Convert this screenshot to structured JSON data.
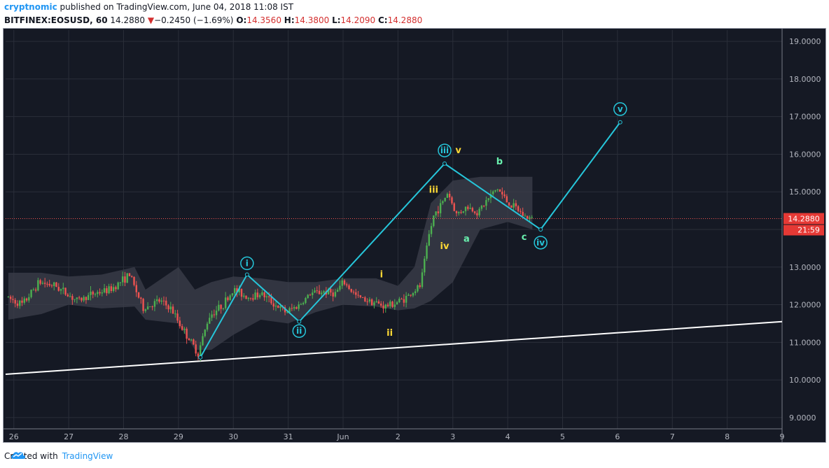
{
  "header": {
    "author": "cryptnomic",
    "published_text": "published on TradingView.com, June 04, 2018 11:08 IST",
    "symbol": "BITFINEX:EOSUSD, 60",
    "last_price": "14.2880",
    "change_arrow": "▼",
    "change": "−0.2450 (−1.69%)",
    "open_label": "O:",
    "open": "14.3560",
    "high_label": "H:",
    "high": "14.3800",
    "low_label": "L:",
    "low": "14.2090",
    "close_label": "C:",
    "close": "14.2880"
  },
  "price_badge": {
    "price": "14.2880",
    "countdown": "21:59"
  },
  "footer": {
    "created_with": "Created with",
    "brand": "TradingView"
  },
  "colors": {
    "background": "#151924",
    "grid": "#2a2e39",
    "up_candle": "#4caf50",
    "down_candle": "#ef5350",
    "wave_line": "#26c6da",
    "trend_line": "#ffffff",
    "yellow_label": "#fdd835",
    "green_label": "#69f0ae",
    "price_line": "#ef5350",
    "cloud_fill": "#3c3f4b"
  },
  "chart_data": {
    "type": "candlestick",
    "symbol": "BITFINEX:EOSUSD",
    "interval": "60",
    "x_tick_labels": [
      "26",
      "27",
      "28",
      "29",
      "30",
      "31",
      "Jun",
      "2",
      "3",
      "4",
      "5",
      "6",
      "7",
      "8",
      "9"
    ],
    "y_tick_labels": [
      "19.0000",
      "18.0000",
      "17.0000",
      "16.0000",
      "15.0000",
      "14.0000",
      "13.0000",
      "12.0000",
      "11.0000",
      "10.0000",
      "9.0000"
    ],
    "y_ticks": [
      19,
      18,
      17,
      16,
      15,
      14,
      13,
      12,
      11,
      10,
      9
    ],
    "ylim": [
      8.7,
      19.3
    ],
    "xlim": [
      25.85,
      40.0
    ],
    "grid": true,
    "current_price": 14.288,
    "price_path": [
      [
        25.9,
        12.2
      ],
      [
        26.2,
        12.0
      ],
      [
        26.5,
        12.6
      ],
      [
        26.8,
        12.5
      ],
      [
        27.2,
        12.1
      ],
      [
        27.5,
        12.3
      ],
      [
        27.8,
        12.4
      ],
      [
        28.15,
        12.8
      ],
      [
        28.4,
        11.9
      ],
      [
        28.7,
        12.1
      ],
      [
        28.9,
        11.9
      ],
      [
        29.1,
        11.4
      ],
      [
        29.4,
        10.7
      ],
      [
        29.6,
        11.7
      ],
      [
        29.85,
        12.0
      ],
      [
        30.05,
        12.4
      ],
      [
        30.3,
        12.2
      ],
      [
        30.55,
        12.3
      ],
      [
        30.8,
        12.0
      ],
      [
        31.0,
        11.8
      ],
      [
        31.25,
        12.0
      ],
      [
        31.45,
        12.3
      ],
      [
        31.7,
        12.35
      ],
      [
        31.9,
        12.3
      ],
      [
        32.05,
        12.6
      ],
      [
        32.3,
        12.2
      ],
      [
        32.55,
        12.1
      ],
      [
        32.8,
        11.95
      ],
      [
        33.0,
        12.05
      ],
      [
        33.2,
        12.2
      ],
      [
        33.45,
        12.5
      ],
      [
        33.6,
        13.8
      ],
      [
        33.7,
        14.4
      ],
      [
        33.85,
        14.7
      ],
      [
        33.95,
        15.0
      ],
      [
        34.1,
        14.4
      ],
      [
        34.3,
        14.6
      ],
      [
        34.5,
        14.45
      ],
      [
        34.65,
        14.75
      ],
      [
        34.85,
        15.1
      ],
      [
        35.05,
        14.7
      ],
      [
        35.2,
        14.55
      ],
      [
        35.35,
        14.35
      ],
      [
        35.45,
        14.29
      ]
    ],
    "cloud_upper": [
      [
        25.9,
        12.85
      ],
      [
        26.5,
        12.85
      ],
      [
        27.0,
        12.75
      ],
      [
        27.6,
        12.8
      ],
      [
        28.2,
        13.0
      ],
      [
        28.4,
        12.4
      ],
      [
        29.0,
        13.0
      ],
      [
        29.3,
        12.4
      ],
      [
        29.6,
        12.6
      ],
      [
        30.0,
        12.75
      ],
      [
        30.5,
        12.7
      ],
      [
        31.0,
        12.6
      ],
      [
        31.5,
        12.6
      ],
      [
        32.0,
        12.7
      ],
      [
        32.6,
        12.7
      ],
      [
        33.0,
        12.5
      ],
      [
        33.3,
        13.0
      ],
      [
        33.6,
        14.7
      ],
      [
        34.0,
        15.3
      ],
      [
        34.5,
        15.4
      ],
      [
        35.0,
        15.4
      ],
      [
        35.45,
        15.4
      ]
    ],
    "cloud_lower": [
      [
        25.9,
        11.6
      ],
      [
        26.5,
        11.75
      ],
      [
        27.0,
        12.0
      ],
      [
        27.6,
        11.9
      ],
      [
        28.2,
        11.95
      ],
      [
        28.4,
        11.6
      ],
      [
        29.0,
        11.5
      ],
      [
        29.3,
        10.8
      ],
      [
        29.6,
        10.8
      ],
      [
        30.0,
        11.2
      ],
      [
        30.5,
        11.6
      ],
      [
        31.0,
        11.5
      ],
      [
        31.5,
        11.8
      ],
      [
        32.0,
        12.0
      ],
      [
        32.6,
        11.95
      ],
      [
        33.0,
        11.85
      ],
      [
        33.3,
        11.9
      ],
      [
        33.6,
        12.1
      ],
      [
        34.0,
        12.6
      ],
      [
        34.5,
        14.0
      ],
      [
        35.0,
        14.2
      ],
      [
        35.45,
        14.0
      ]
    ],
    "wave_path": [
      [
        29.4,
        10.6
      ],
      [
        30.25,
        12.8
      ],
      [
        31.2,
        11.55
      ],
      [
        33.85,
        15.75
      ],
      [
        35.6,
        14.0
      ],
      [
        37.05,
        16.85
      ]
    ],
    "trend_line": [
      [
        25.85,
        10.15
      ],
      [
        40.0,
        11.55
      ]
    ],
    "annotations": [
      {
        "text": "i",
        "x": 30.25,
        "y": 13.1,
        "style": "circle"
      },
      {
        "text": "ii",
        "x": 31.2,
        "y": 11.3,
        "style": "circle"
      },
      {
        "text": "iii",
        "x": 33.85,
        "y": 16.1,
        "style": "circle"
      },
      {
        "text": "iv",
        "x": 35.6,
        "y": 13.65,
        "style": "circle"
      },
      {
        "text": "v",
        "x": 37.05,
        "y": 17.2,
        "style": "circle"
      },
      {
        "text": "i",
        "x": 32.7,
        "y": 12.8,
        "style": "yellow"
      },
      {
        "text": "ii",
        "x": 32.85,
        "y": 11.25,
        "style": "yellow"
      },
      {
        "text": "iii",
        "x": 33.65,
        "y": 15.05,
        "style": "yellow"
      },
      {
        "text": "iv",
        "x": 33.85,
        "y": 13.55,
        "style": "yellow"
      },
      {
        "text": "v",
        "x": 34.1,
        "y": 16.1,
        "style": "yellow"
      },
      {
        "text": "a",
        "x": 34.25,
        "y": 13.75,
        "style": "green"
      },
      {
        "text": "b",
        "x": 34.85,
        "y": 15.8,
        "style": "green"
      },
      {
        "text": "c",
        "x": 35.3,
        "y": 13.8,
        "style": "green"
      }
    ]
  }
}
